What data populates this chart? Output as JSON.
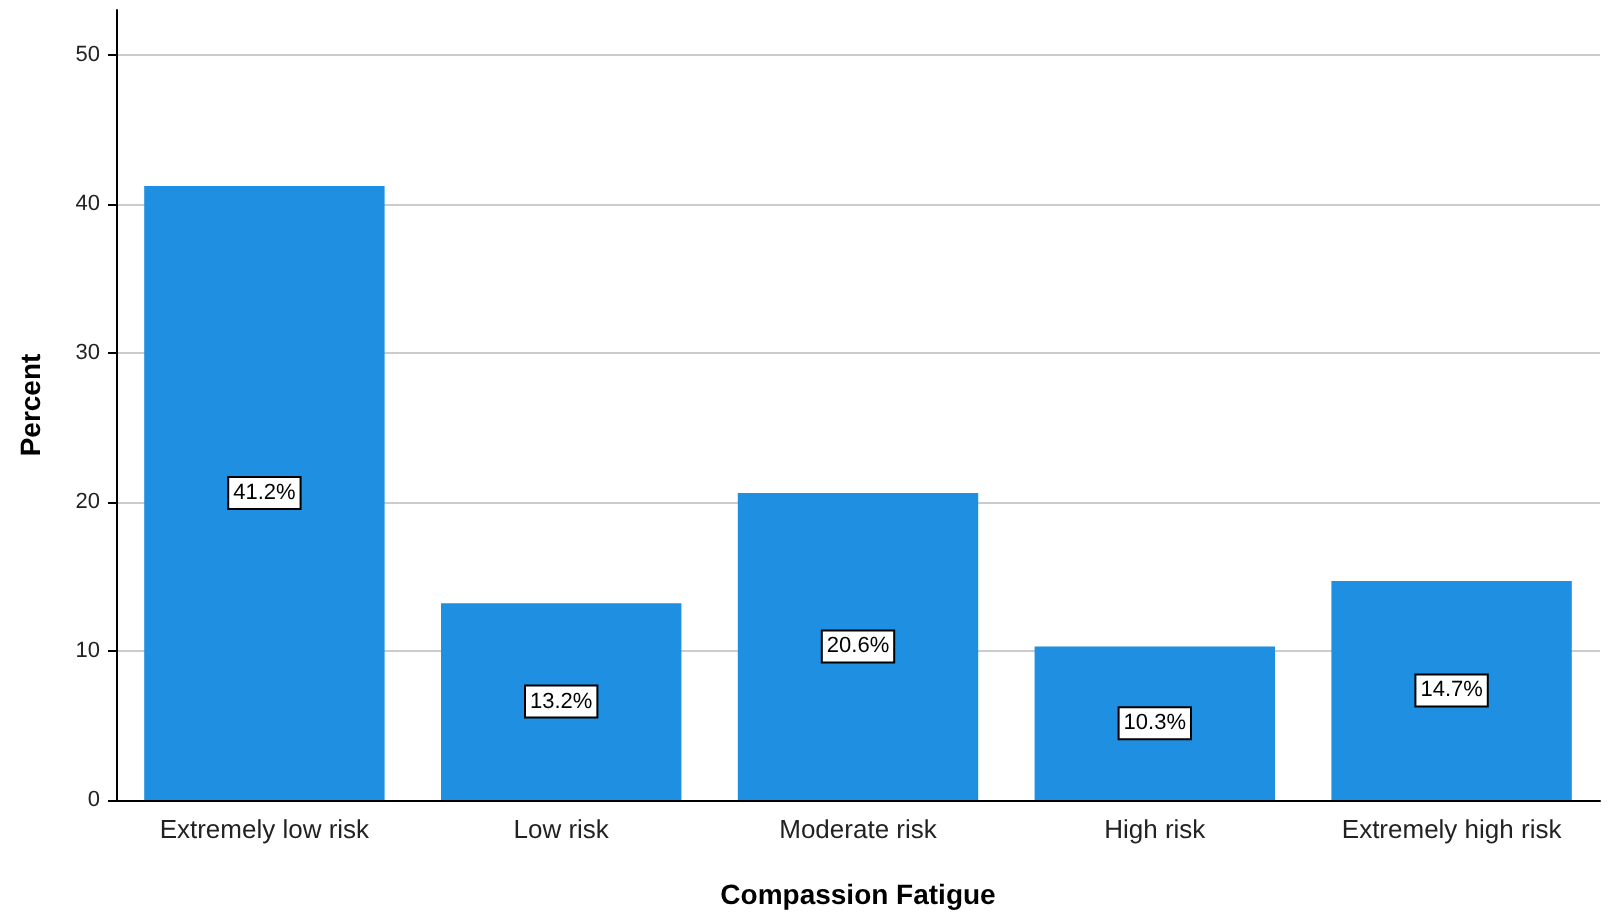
{
  "chart_data": {
    "type": "bar",
    "xlabel": "Compassion Fatigue",
    "ylabel": "Percent",
    "categories": [
      "Extremely low risk",
      "Low risk",
      "Moderate risk",
      "High risk",
      "Extremely high risk"
    ],
    "values": [
      41.2,
      13.2,
      20.6,
      10.3,
      14.7
    ],
    "color": "#1e8fe1",
    "value_labels": [
      "41.2%",
      "13.2%",
      "20.6%",
      "10.3%",
      "14.7%"
    ],
    "ylim": [
      0,
      53
    ],
    "yticks": [
      0,
      10,
      20,
      30,
      40,
      50
    ],
    "grid": "y"
  }
}
